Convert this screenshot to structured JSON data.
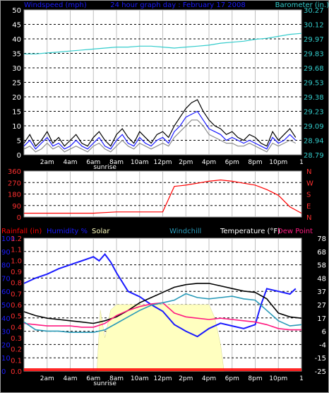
{
  "chart_data": [
    {
      "type": "line",
      "header": {
        "title": "24 hour graph day : February 17 2008",
        "left_label": "Windspeed (mph)",
        "right_label": "Barometer (in.)"
      },
      "x_tick_labels": [
        "2am",
        "4am",
        "6am",
        "8am",
        "10am",
        "12pm",
        "2pm",
        "4pm",
        "6pm",
        "8pm",
        "10pm",
        "1"
      ],
      "sunrise_label": "sunrise",
      "y_left": {
        "ticks": [
          "0",
          "5",
          "10",
          "15",
          "20",
          "25",
          "30",
          "35",
          "40",
          "45",
          "50"
        ],
        "ylim": [
          0,
          50
        ]
      },
      "y_right": {
        "ticks": [
          "28.79",
          "28.94",
          "29.09",
          "29.23",
          "29.38",
          "29.53",
          "29.68",
          "29.83",
          "29.97",
          "30.12",
          "30.27"
        ],
        "ylim": [
          28.79,
          30.27
        ]
      },
      "series": [
        {
          "name": "Windspeed",
          "axis": "left",
          "color": "#000000",
          "x": [
            0,
            0.5,
            1,
            1.5,
            2,
            2.5,
            3,
            3.5,
            4,
            4.5,
            5,
            5.5,
            6,
            6.5,
            7,
            7.5,
            8,
            8.5,
            9,
            9.5,
            10,
            10.5,
            11,
            11.5,
            12,
            12.5,
            13,
            13.5,
            14,
            14.5,
            15,
            15.5,
            16,
            16.5,
            17,
            17.5,
            18,
            18.5,
            19,
            19.5,
            20,
            20.5,
            21,
            21.5,
            22,
            22.5,
            23,
            23.5
          ],
          "values": [
            4,
            7,
            3,
            5,
            8,
            4,
            6,
            3,
            5,
            7,
            4,
            3,
            6,
            8,
            5,
            3,
            7,
            9,
            6,
            4,
            8,
            6,
            4,
            7,
            8,
            6,
            10,
            13,
            16,
            18,
            19,
            15,
            12,
            10,
            9,
            7,
            8,
            6,
            5,
            7,
            6,
            4,
            3,
            8,
            5,
            7,
            9,
            6
          ]
        },
        {
          "name": "Gust",
          "axis": "left",
          "color": "#1a1aff",
          "x": [
            0,
            0.5,
            1,
            1.5,
            2,
            2.5,
            3,
            3.5,
            4,
            4.5,
            5,
            5.5,
            6,
            6.5,
            7,
            7.5,
            8,
            8.5,
            9,
            9.5,
            10,
            10.5,
            11,
            11.5,
            12,
            12.5,
            13,
            13.5,
            14,
            14.5,
            15,
            15.5,
            16,
            16.5,
            17,
            17.5,
            18,
            18.5,
            19,
            19.5,
            20,
            20.5,
            21,
            21.5,
            22,
            22.5,
            23,
            23.5
          ],
          "values": [
            3,
            5,
            2,
            4,
            6,
            3,
            4,
            2,
            3,
            5,
            3,
            2,
            4,
            6,
            3,
            2,
            5,
            7,
            4,
            3,
            6,
            4,
            3,
            5,
            6,
            4,
            8,
            10,
            13,
            14,
            15,
            12,
            9,
            8,
            7,
            5,
            6,
            5,
            4,
            5,
            4,
            3,
            2,
            6,
            4,
            5,
            7,
            5
          ]
        },
        {
          "name": "Windspeed avg",
          "axis": "left",
          "color": "#8c8c8c",
          "x": [
            0,
            0.5,
            1,
            1.5,
            2,
            2.5,
            3,
            3.5,
            4,
            4.5,
            5,
            5.5,
            6,
            6.5,
            7,
            7.5,
            8,
            8.5,
            9,
            9.5,
            10,
            10.5,
            11,
            11.5,
            12,
            12.5,
            13,
            13.5,
            14,
            14.5,
            15,
            15.5,
            16,
            16.5,
            17,
            17.5,
            18,
            18.5,
            19,
            19.5,
            20,
            20.5,
            21,
            21.5,
            22,
            22.5,
            23,
            23.5
          ],
          "values": [
            2,
            3,
            1,
            2,
            4,
            2,
            3,
            1,
            2,
            3,
            2,
            1,
            3,
            4,
            2,
            1,
            3,
            5,
            3,
            2,
            4,
            3,
            2,
            3,
            4,
            3,
            6,
            8,
            10,
            12,
            12,
            10,
            7,
            6,
            5,
            4,
            4,
            3,
            3,
            4,
            3,
            2,
            1,
            4,
            3,
            4,
            5,
            4
          ]
        },
        {
          "name": "Barometer",
          "axis": "right",
          "color": "#33cccc",
          "x": [
            0,
            1,
            2,
            3,
            4,
            5,
            6,
            7,
            8,
            9,
            10,
            11,
            12,
            13,
            14,
            15,
            16,
            17,
            18,
            19,
            20,
            21,
            22,
            23,
            24
          ],
          "values": [
            29.82,
            29.82,
            29.83,
            29.84,
            29.85,
            29.86,
            29.87,
            29.88,
            29.89,
            29.89,
            29.9,
            29.9,
            29.89,
            29.88,
            29.89,
            29.9,
            29.91,
            29.93,
            29.94,
            29.95,
            29.97,
            29.98,
            30.0,
            30.02,
            30.03
          ]
        }
      ]
    },
    {
      "type": "line",
      "y_left": {
        "ticks": [
          "0",
          "90",
          "180",
          "270",
          "360"
        ],
        "ylim": [
          0,
          360
        ]
      },
      "right_labels": [
        "N",
        "W",
        "S",
        "E",
        "N"
      ],
      "series": [
        {
          "name": "Wind direction",
          "color": "#ff0000",
          "x": [
            0,
            1,
            2,
            3,
            4,
            5,
            6,
            7,
            8,
            9,
            10,
            11,
            12,
            13,
            14,
            15,
            16,
            17,
            18,
            19,
            20,
            21,
            22,
            23,
            24
          ],
          "values": [
            30,
            30,
            30,
            30,
            30,
            30,
            30,
            35,
            40,
            40,
            40,
            40,
            40,
            240,
            250,
            265,
            280,
            290,
            280,
            265,
            250,
            215,
            170,
            80,
            30
          ]
        }
      ]
    },
    {
      "type": "line",
      "header": {
        "rainfall_label": "Rainfall (in)",
        "humidity_label": "Humidity %",
        "solar_label": "Solar",
        "windchill_label": "Windchill",
        "temperature_label": "Temperature (°F)",
        "dewpoint_label": "Dew Point"
      },
      "x_tick_labels": [
        "2am",
        "4am",
        "6am",
        "8am",
        "10am",
        "12pm",
        "2pm",
        "4pm",
        "6pm",
        "8pm",
        "10pm",
        "1"
      ],
      "sunrise_label": "sunrise",
      "y_humidity": {
        "ticks": [
          "0",
          "10",
          "20",
          "30",
          "40",
          "50",
          "60",
          "70",
          "80",
          "90",
          "100"
        ],
        "ylim": [
          0,
          100
        ]
      },
      "y_rain": {
        "ticks": [
          "0.0",
          "0.1",
          "0.2",
          "0.3",
          "0.4",
          "0.5",
          "0.6",
          "0.7",
          "0.8",
          "0.9",
          "1.0",
          "1.1",
          "1.2"
        ],
        "ylim": [
          0,
          1.2
        ]
      },
      "y_temp": {
        "ticks": [
          "-25",
          "-15",
          "-4",
          "6",
          "17",
          "27",
          "37",
          "48",
          "58",
          "68",
          "78"
        ],
        "ylim": [
          -25,
          78
        ]
      },
      "series": [
        {
          "name": "Humidity",
          "color": "#1a1aff",
          "x": [
            0,
            1,
            2,
            3,
            4,
            5,
            6,
            6.5,
            7,
            7.5,
            8,
            9,
            10,
            11,
            12,
            13,
            14,
            15,
            16,
            17,
            18,
            19,
            20,
            20.5,
            21,
            22,
            23,
            23.5
          ],
          "values": [
            66,
            70,
            73,
            77,
            80,
            83,
            86,
            83,
            88,
            82,
            74,
            60,
            56,
            50,
            45,
            35,
            30,
            26,
            32,
            36,
            34,
            32,
            35,
            50,
            62,
            60,
            58,
            62
          ]
        },
        {
          "name": "Temperature",
          "color": "#000000",
          "x": [
            0,
            1,
            2,
            3,
            4,
            5,
            6,
            7,
            8,
            9,
            10,
            11,
            12,
            13,
            14,
            15,
            16,
            17,
            18,
            19,
            20,
            21,
            22,
            23,
            24
          ],
          "values": [
            21,
            18,
            16,
            15,
            14,
            13,
            12,
            14,
            17,
            22,
            28,
            32,
            36,
            40,
            42,
            43,
            43,
            41,
            39,
            37,
            36,
            31,
            20,
            17,
            16
          ]
        },
        {
          "name": "Dew Point",
          "color": "#ff1a80",
          "x": [
            0,
            1,
            2,
            3,
            4,
            5,
            6,
            7,
            8,
            9,
            10,
            11,
            12,
            13,
            14,
            15,
            16,
            17,
            18,
            19,
            20,
            21,
            22,
            23,
            24
          ],
          "values": [
            12,
            11,
            10,
            10,
            10,
            9,
            9,
            12,
            18,
            22,
            25,
            27,
            28,
            20,
            17,
            16,
            15,
            16,
            15,
            14,
            13,
            11,
            8,
            7,
            7
          ]
        },
        {
          "name": "Windchill",
          "color": "#2a9ab8",
          "x": [
            0,
            1,
            2,
            3,
            4,
            5,
            6,
            7,
            8,
            9,
            10,
            11,
            12,
            13,
            14,
            15,
            16,
            17,
            18,
            19,
            20,
            21,
            22,
            23,
            24
          ],
          "values": [
            13,
            7,
            6,
            6,
            5,
            5,
            5,
            7,
            12,
            17,
            22,
            26,
            28,
            30,
            35,
            32,
            31,
            32,
            33,
            31,
            30,
            22,
            14,
            10,
            11
          ]
        },
        {
          "name": "Solar",
          "color": "#ffffc0",
          "x": [
            6.3,
            6.6,
            7,
            7.5,
            8,
            9,
            10,
            11,
            12,
            13,
            14,
            15,
            16,
            16.5,
            17,
            17.3
          ],
          "values": [
            0,
            46,
            25,
            46,
            50,
            50,
            50,
            50,
            50,
            50,
            50,
            50,
            50,
            40,
            20,
            0
          ]
        },
        {
          "name": "Rainfall",
          "color": "#ff0000",
          "x": [
            0,
            24
          ],
          "values": [
            0,
            0
          ]
        }
      ]
    }
  ]
}
